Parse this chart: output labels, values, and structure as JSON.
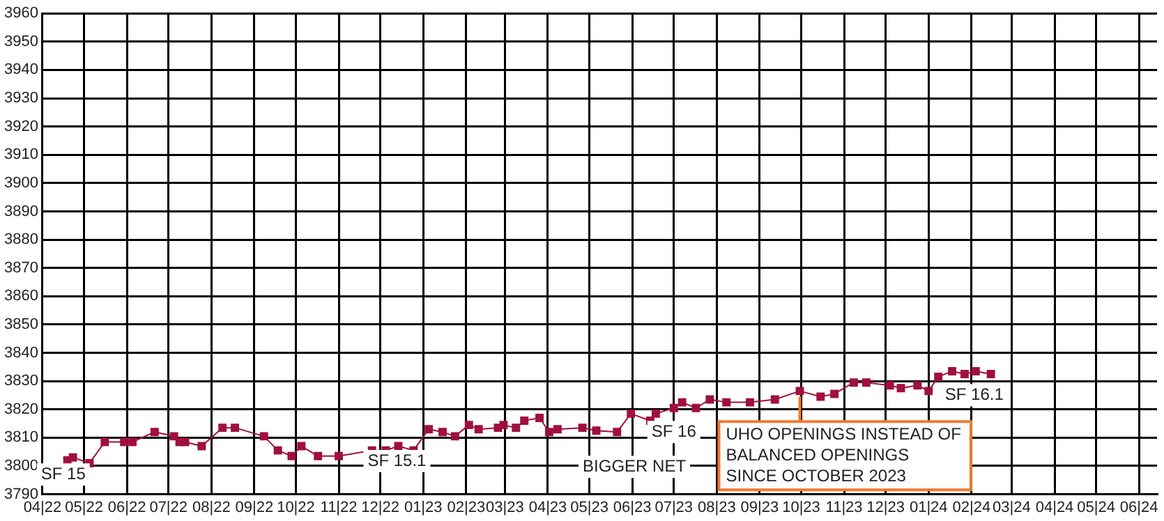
{
  "chart_data": {
    "type": "line",
    "color": "#a0103c",
    "marker": "square",
    "grid": true,
    "legend": false,
    "x": [
      "2022-04-19",
      "2022-04-23",
      "2022-05-05",
      "2022-05-16",
      "2022-05-30",
      "2022-06-05",
      "2022-06-21",
      "2022-07-05",
      "2022-07-09",
      "2022-07-13",
      "2022-07-25",
      "2022-08-09",
      "2022-08-18",
      "2022-09-08",
      "2022-09-18",
      "2022-09-28",
      "2022-10-05",
      "2022-10-17",
      "2022-11-01",
      "2022-11-25",
      "2022-12-05",
      "2022-12-14",
      "2022-12-25",
      "2023-01-05",
      "2023-01-15",
      "2023-01-24",
      "2023-02-03",
      "2023-02-10",
      "2023-02-24",
      "2023-02-28",
      "2023-03-09",
      "2023-03-15",
      "2023-03-26",
      "2023-04-02",
      "2023-04-08",
      "2023-04-26",
      "2023-05-06",
      "2023-05-21",
      "2023-05-31",
      "2023-06-14",
      "2023-06-18",
      "2023-07-01",
      "2023-07-07",
      "2023-07-17",
      "2023-07-27",
      "2023-08-08",
      "2023-08-25",
      "2023-09-12",
      "2023-09-30",
      "2023-10-15",
      "2023-10-25",
      "2023-11-08",
      "2023-11-17",
      "2023-12-04",
      "2023-12-12",
      "2023-12-24",
      "2024-01-01",
      "2024-01-08",
      "2024-01-18",
      "2024-01-27",
      "2024-02-04",
      "2024-02-15"
    ],
    "values": [
      3802,
      3803,
      3801,
      3808.5,
      3808.5,
      3808.5,
      3812,
      3810.5,
      3808.5,
      3808.5,
      3807,
      3813.5,
      3813.5,
      3810.5,
      3805.5,
      3803.5,
      3807,
      3803.5,
      3803.5,
      3805.5,
      3805.5,
      3807,
      3805.5,
      3813,
      3812,
      3810.5,
      3814.5,
      3813,
      3813.5,
      3814.5,
      3813.5,
      3816,
      3817,
      3812,
      3813,
      3813.5,
      3812.5,
      3812,
      3818.5,
      3816,
      3818.5,
      3820.5,
      3822.5,
      3820.5,
      3823.5,
      3822.5,
      3822.5,
      3823.5,
      3826.5,
      3824.5,
      3825.5,
      3829.5,
      3829.5,
      3828.5,
      3827.5,
      3828.5,
      3826.5,
      3831.5,
      3833.5,
      3832.5,
      3833.5,
      3832.5
    ],
    "xlim": [
      "2022-04-01",
      "2024-06-14"
    ],
    "xticks": [
      {
        "value": "2022-04",
        "label": "04|22"
      },
      {
        "value": "2022-05",
        "label": "05|22"
      },
      {
        "value": "2022-06",
        "label": "06|22"
      },
      {
        "value": "2022-07",
        "label": "07|22"
      },
      {
        "value": "2022-08",
        "label": "08|22"
      },
      {
        "value": "2022-09",
        "label": "09|22"
      },
      {
        "value": "2022-10",
        "label": "10|22"
      },
      {
        "value": "2022-11",
        "label": "11|22"
      },
      {
        "value": "2022-12",
        "label": "12|22"
      },
      {
        "value": "2023-01",
        "label": "01|23"
      },
      {
        "value": "2023-02",
        "label": "02|23"
      },
      {
        "value": "2023-03",
        "label": "03|23"
      },
      {
        "value": "2023-04",
        "label": "04|23"
      },
      {
        "value": "2023-05",
        "label": "05|23"
      },
      {
        "value": "2023-06",
        "label": "06|23"
      },
      {
        "value": "2023-07",
        "label": "07|23"
      },
      {
        "value": "2023-08",
        "label": "08|23"
      },
      {
        "value": "2023-09",
        "label": "09|23"
      },
      {
        "value": "2023-10",
        "label": "10|23"
      },
      {
        "value": "2023-11",
        "label": "11|23"
      },
      {
        "value": "2023-12",
        "label": "12|23"
      },
      {
        "value": "2024-01",
        "label": "01|24"
      },
      {
        "value": "2024-02",
        "label": "02|24"
      },
      {
        "value": "2024-03",
        "label": "03|24"
      },
      {
        "value": "2024-04",
        "label": "04|24"
      },
      {
        "value": "2024-05",
        "label": "05|24"
      },
      {
        "value": "2024-06",
        "label": "06|24"
      }
    ],
    "ylim": [
      3790,
      3960
    ],
    "yticks": [
      3790,
      3800,
      3810,
      3820,
      3830,
      3840,
      3850,
      3860,
      3870,
      3880,
      3890,
      3900,
      3910,
      3920,
      3930,
      3940,
      3950,
      3960
    ],
    "annotations": [
      {
        "text": "SF 15",
        "x": "2022-04-16",
        "y": 3797
      },
      "SF 15.1",
      "BIGGER NET",
      {
        "text": "SF 16",
        "x": "2023-07-01",
        "y": 3812
      },
      {
        "text": "UHO OPENINGS INSTEAD OF\nBALANCED OPENINGS\nSINCE OCTOBER 2023",
        "x": "2023-09-30",
        "y": 3826.5
      },
      "SF 16.1"
    ]
  }
}
